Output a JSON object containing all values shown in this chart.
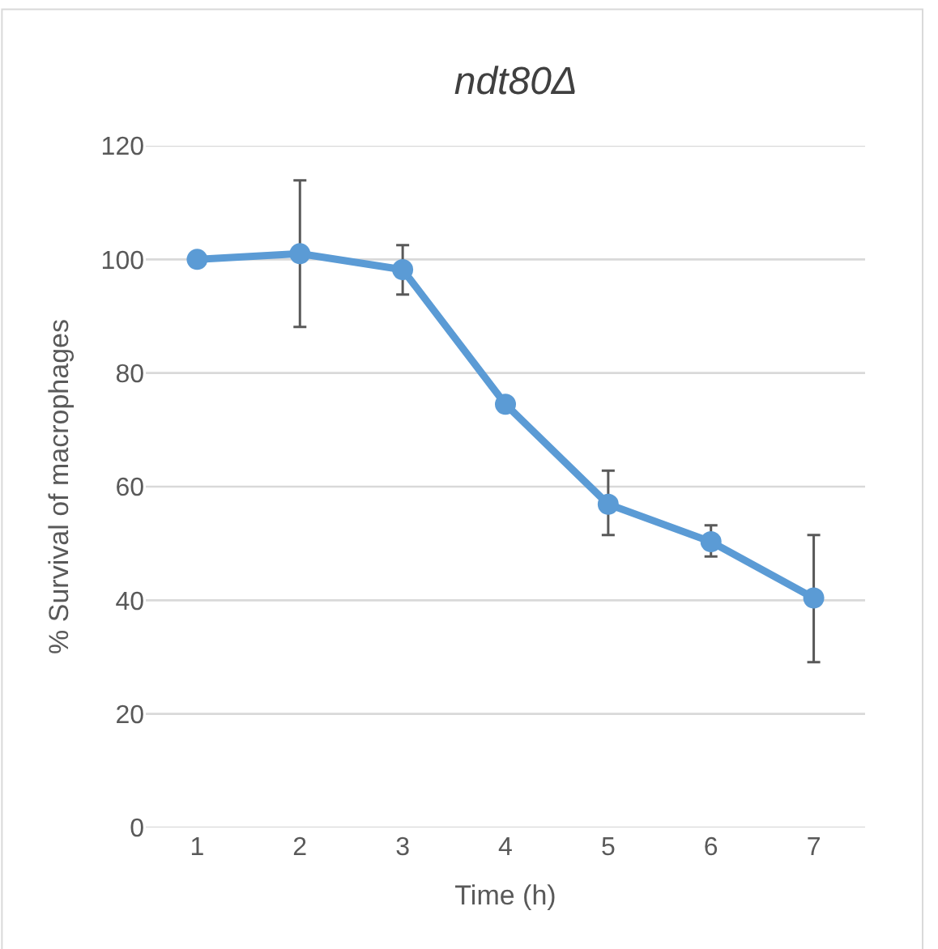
{
  "chart_data": {
    "type": "line",
    "title": "ndt80Δ",
    "xlabel": "Time (h)",
    "ylabel": "% Survival of macrophages",
    "categories": [
      "1",
      "2",
      "3",
      "4",
      "5",
      "6",
      "7"
    ],
    "series": [
      {
        "color": "#5b9bd5",
        "values": [
          100,
          101,
          98.2,
          74.5,
          56.9,
          50.3,
          40.4
        ],
        "errors": [
          null,
          [
            88.1,
            113.9
          ],
          [
            93.8,
            102.5
          ],
          null,
          [
            51.5,
            62.8
          ],
          [
            47.7,
            53.2
          ],
          [
            29.1,
            51.5
          ]
        ]
      }
    ],
    "ylim": [
      0,
      120
    ],
    "yticks": [
      0,
      20,
      40,
      60,
      80,
      100,
      120
    ],
    "grid": "y",
    "marker": "circle",
    "line_style": "solid"
  }
}
